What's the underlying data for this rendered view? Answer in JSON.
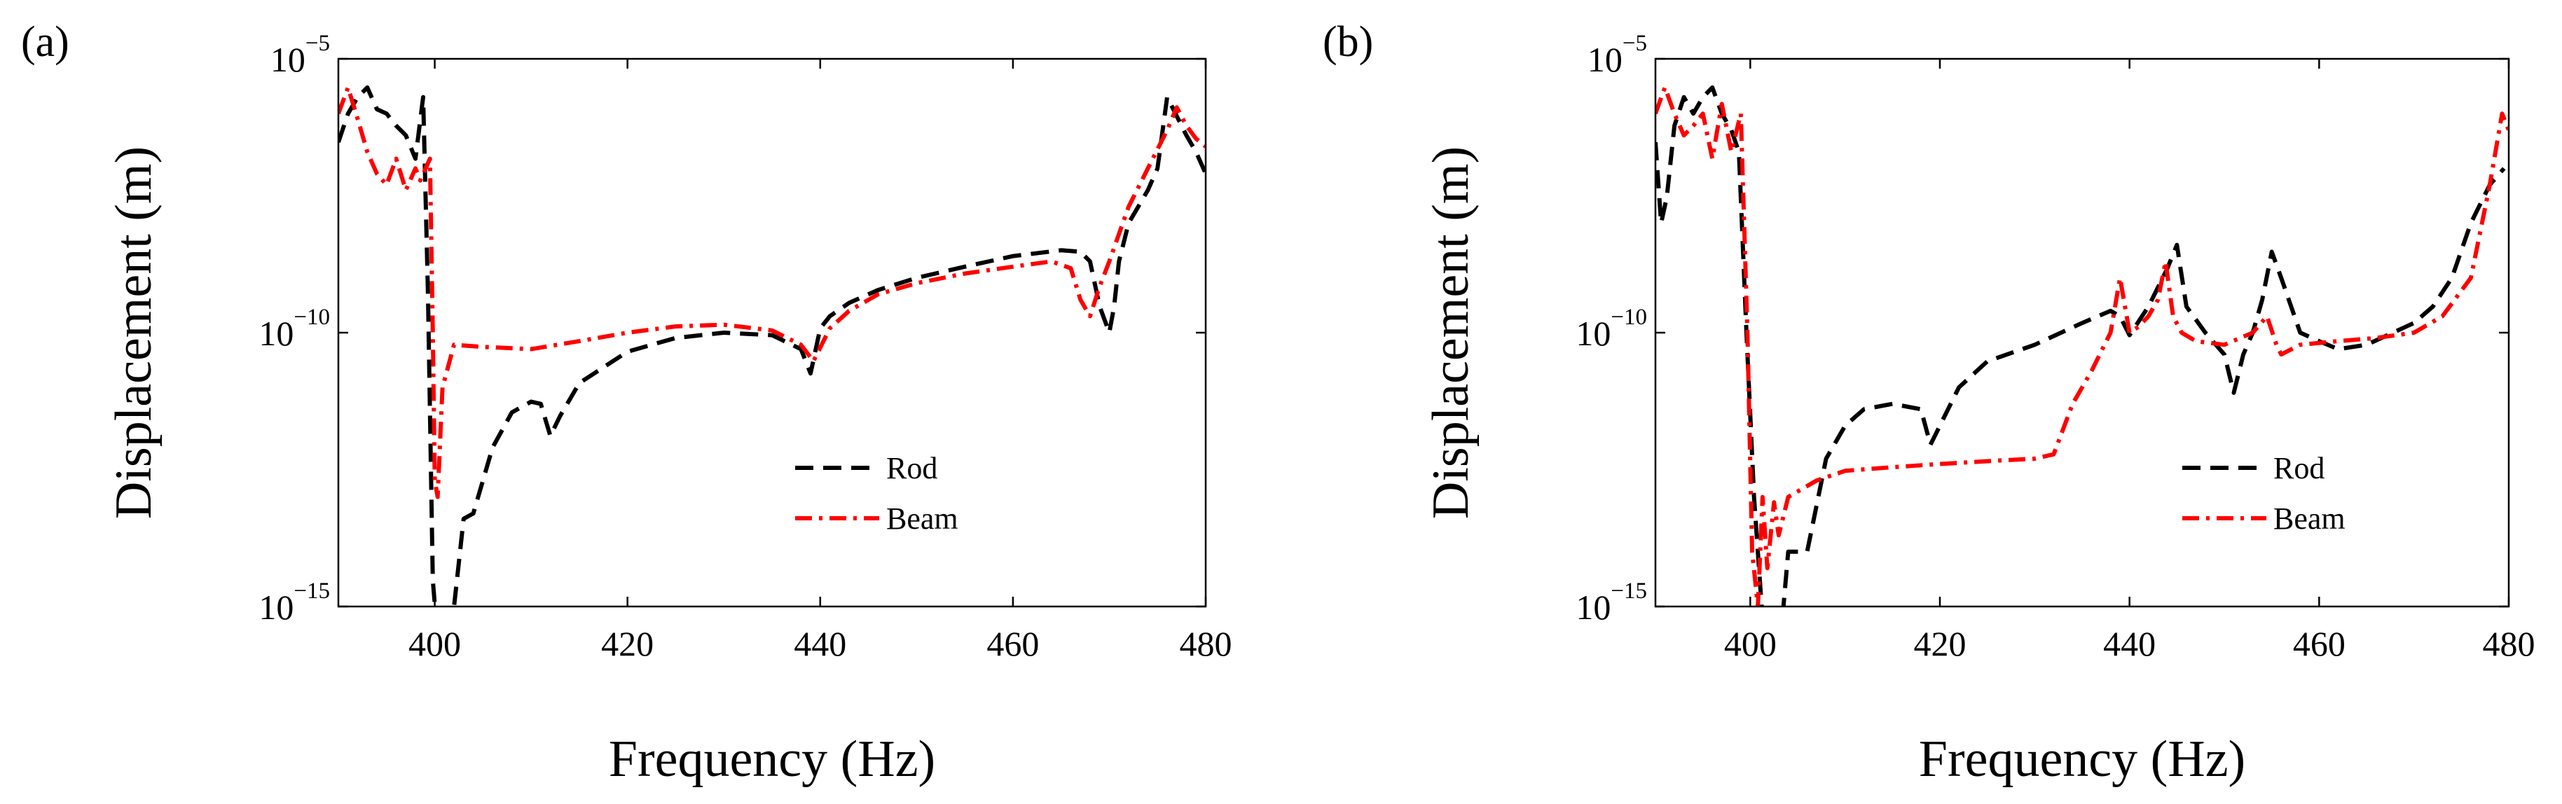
{
  "chart_data": [
    {
      "type": "line",
      "panel": "(a)",
      "xlabel": "Frequency (Hz)",
      "ylabel": "Displacement (m)",
      "xlim": [
        390,
        480
      ],
      "ylim": [
        1e-15,
        1e-05
      ],
      "yscale": "log",
      "x_ticks": [
        "400",
        "420",
        "440",
        "460",
        "480"
      ],
      "y_ticks": [
        {
          "base": "10",
          "exp": "−15",
          "value": 1e-15
        },
        {
          "base": "10",
          "exp": "−10",
          "value": 1e-10
        },
        {
          "base": "10",
          "exp": "−5",
          "value": 1e-05
        }
      ],
      "legend": "lower-right",
      "series": [
        {
          "name": "Rod",
          "color": "#000000",
          "style": "dashed",
          "x": [
            390,
            391,
            392,
            393,
            394,
            395,
            396,
            397,
            398,
            398.8,
            399.3,
            399.8,
            400.5,
            401,
            402,
            403,
            404,
            406,
            408,
            410,
            411,
            412,
            413,
            415,
            420,
            425,
            430,
            435,
            438,
            439,
            440,
            441,
            443,
            446,
            450,
            455,
            460,
            465,
            467,
            468,
            469,
            470,
            470.5,
            471,
            472,
            474,
            475,
            476,
            477,
            478,
            479,
            480
          ],
          "y": [
            3e-07,
            1e-06,
            2e-06,
            3e-06,
            1.2e-06,
            1e-06,
            6e-07,
            4e-07,
            1.5e-07,
            2e-06,
            5e-10,
            3e-15,
            1e-16,
            1e-16,
            1e-15,
            4e-14,
            5e-14,
            8e-13,
            3.5e-12,
            5.5e-12,
            5e-12,
            1.3e-12,
            3e-12,
            1.2e-11,
            4.5e-11,
            8e-11,
            1e-10,
            9e-11,
            5e-11,
            1.8e-11,
            1.2e-10,
            2e-10,
            3.5e-10,
            6e-10,
            1e-09,
            1.6e-09,
            2.5e-09,
            3.2e-09,
            3e-09,
            2e-09,
            3e-10,
            1e-10,
            3e-10,
            2e-09,
            1e-08,
            4e-08,
            1e-07,
            2e-06,
            9e-07,
            4e-07,
            2e-07,
            8e-08
          ]
        },
        {
          "name": "Beam",
          "color": "#ff0000",
          "style": "dashdot",
          "x": [
            390,
            391,
            392,
            393,
            394,
            395,
            396,
            397,
            398,
            398.5,
            399.5,
            399.8,
            400,
            400.3,
            400.8,
            402,
            405,
            410,
            415,
            420,
            425,
            430,
            435,
            438,
            439.3,
            441,
            443,
            446,
            450,
            455,
            460,
            464,
            466,
            467,
            468,
            469,
            470,
            472,
            474,
            476,
            477,
            478,
            479,
            480
          ],
          "y": [
            1e-06,
            3e-06,
            8e-07,
            2e-07,
            8e-08,
            5e-08,
            1.5e-07,
            4e-08,
            1e-07,
            6e-08,
            1.5e-07,
            1e-10,
            2e-13,
            1e-13,
            1e-11,
            6e-11,
            5.5e-11,
            5e-11,
            7e-11,
            1e-10,
            1.3e-10,
            1.4e-10,
            1.1e-10,
            6e-11,
            3e-11,
            1.2e-10,
            2.5e-10,
            5e-10,
            8e-10,
            1.2e-09,
            1.6e-09,
            2e-09,
            1.5e-09,
            4e-10,
            2e-10,
            7e-10,
            2e-09,
            2e-08,
            1e-07,
            5e-07,
            1.3e-06,
            6e-07,
            3.5e-07,
            2.5e-07
          ]
        }
      ]
    },
    {
      "type": "line",
      "panel": "(b)",
      "xlabel": "Frequency (Hz)",
      "ylabel": "Displacement (m)",
      "xlim": [
        390,
        480
      ],
      "ylim": [
        1e-15,
        1e-05
      ],
      "yscale": "log",
      "x_ticks": [
        "400",
        "420",
        "440",
        "460",
        "480"
      ],
      "y_ticks": [
        {
          "base": "10",
          "exp": "−15",
          "value": 1e-15
        },
        {
          "base": "10",
          "exp": "−10",
          "value": 1e-10
        },
        {
          "base": "10",
          "exp": "−5",
          "value": 1e-05
        }
      ],
      "legend": "lower-right",
      "series": [
        {
          "name": "Rod",
          "color": "#000000",
          "style": "dashed",
          "x": [
            390,
            390.6,
            391.2,
            392,
            393,
            394,
            395,
            396,
            397,
            398,
            398.8,
            399.6,
            400.4,
            401.2,
            402,
            403,
            404,
            406,
            408,
            410,
            412,
            415,
            418,
            419,
            420,
            422,
            425,
            430,
            435,
            438,
            439,
            440,
            442,
            444,
            445,
            446,
            448,
            450,
            451,
            452,
            453,
            454,
            455,
            456,
            458,
            460,
            462,
            465,
            470,
            472,
            474,
            476,
            478,
            479.5
          ],
          "y": [
            3e-07,
            1e-08,
            3e-08,
            6e-07,
            2e-06,
            1e-06,
            2e-06,
            3e-06,
            1e-06,
            5e-07,
            2e-07,
            1e-10,
            1e-13,
            1e-15,
            1e-16,
            1e-16,
            1e-14,
            1e-14,
            5e-13,
            2e-12,
            4e-12,
            5e-12,
            4e-12,
            9e-13,
            2e-12,
            1e-11,
            3e-11,
            6e-11,
            1.5e-10,
            2.5e-10,
            2e-10,
            9e-11,
            3e-10,
            1.5e-09,
            4e-09,
            3e-10,
            1e-10,
            4e-11,
            8e-12,
            4e-11,
            1e-10,
            4e-10,
            3e-09,
            1e-09,
            1e-10,
            7e-11,
            5e-11,
            6e-11,
            1.5e-10,
            3e-10,
            1e-09,
            1e-08,
            5e-08,
            1e-07
          ]
        },
        {
          "name": "Beam",
          "color": "#ff0000",
          "style": "dashdot",
          "x": [
            390,
            391,
            392,
            393,
            394,
            395,
            396,
            397,
            398,
            399,
            399.7,
            400.2,
            400.8,
            401.3,
            401.8,
            402.5,
            403,
            404,
            407,
            410,
            415,
            420,
            425,
            430,
            432,
            434,
            436,
            438,
            439,
            440,
            441,
            442,
            443,
            443.8,
            444.6,
            445.5,
            447,
            450,
            453,
            454.5,
            455.5,
            456,
            458,
            462,
            466,
            470,
            473,
            476,
            478,
            479.3,
            480
          ],
          "y": [
            1e-06,
            3e-06,
            1e-06,
            4e-07,
            6e-07,
            1e-06,
            1.5e-07,
            1.5e-06,
            2e-07,
            1e-06,
            1e-10,
            1e-14,
            1e-15,
            1e-13,
            5e-15,
            8e-14,
            2e-14,
            1e-13,
            2e-13,
            3e-13,
            3.5e-13,
            4e-13,
            4.5e-13,
            5e-13,
            6e-13,
            5e-12,
            2e-11,
            1e-10,
            1e-09,
            1e-10,
            1.3e-10,
            2e-10,
            4e-10,
            2e-09,
            2e-10,
            1e-10,
            7e-11,
            6e-11,
            1e-10,
            2e-10,
            6e-11,
            4e-11,
            6e-11,
            7e-11,
            8e-11,
            1e-10,
            2e-10,
            1e-09,
            5e-08,
            1e-06,
            5e-07
          ]
        }
      ]
    }
  ]
}
